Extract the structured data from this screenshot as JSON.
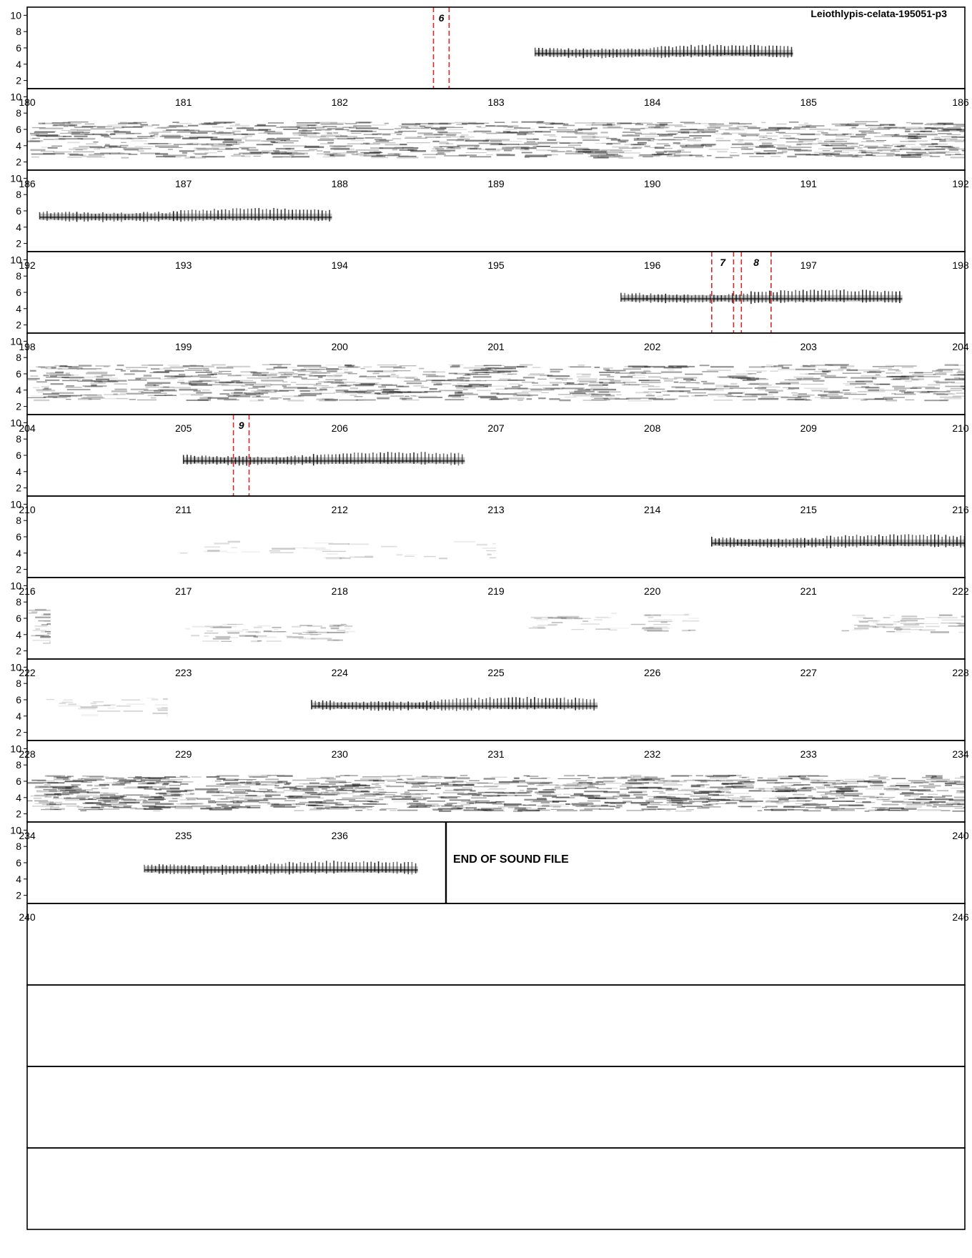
{
  "title": "Leiothlypis-celata-195051-p3",
  "end_label": "END OF SOUND FILE",
  "y_ticks": [
    "10",
    "8",
    "6",
    "4",
    "2"
  ],
  "colors": {
    "frame": "#000000",
    "marker": "#d62828",
    "ink": "#333333"
  },
  "chart_data": {
    "type": "heatmap",
    "title": "Leiothlypis-celata-195051-p3",
    "description_kind": "multi-row spectrogram",
    "ylim": [
      1,
      11
    ],
    "y_ticks": [
      10,
      8,
      6,
      4,
      2
    ],
    "row_seconds": 6,
    "rows": [
      {
        "start": 174,
        "show_x_labels": false,
        "x_tick_labels": [],
        "songs": [
          {
            "t0": 177.25,
            "t1": 178.9,
            "f": 5.5
          }
        ],
        "noise": [],
        "markers": [
          {
            "label": "6",
            "t0": 176.6,
            "t1": 176.7
          }
        ]
      },
      {
        "start": 180,
        "show_x_labels": true,
        "x_tick_labels": [
          "180",
          "181",
          "182",
          "183",
          "184",
          "185",
          "186"
        ],
        "songs": [],
        "noise": [
          {
            "t0": 180.0,
            "t1": 186.0,
            "f": 4.8,
            "density": 0.9
          }
        ],
        "markers": []
      },
      {
        "start": 186,
        "show_x_labels": true,
        "x_tick_labels": [
          "186",
          "187",
          "188",
          "189",
          "190",
          "191",
          "192"
        ],
        "songs": [
          {
            "t0": 186.08,
            "t1": 187.95,
            "f": 5.4
          }
        ],
        "noise": [],
        "markers": []
      },
      {
        "start": 192,
        "show_x_labels": true,
        "x_tick_labels": [
          "192",
          "193",
          "194",
          "195",
          "196",
          "197",
          "198"
        ],
        "songs": [
          {
            "t0": 195.8,
            "t1": 197.6,
            "f": 5.4
          }
        ],
        "noise": [],
        "markers": [
          {
            "label": "7",
            "t0": 196.38,
            "t1": 196.52
          },
          {
            "label": "8",
            "t0": 196.57,
            "t1": 196.76
          }
        ]
      },
      {
        "start": 198,
        "show_x_labels": true,
        "x_tick_labels": [
          "198",
          "199",
          "200",
          "201",
          "202",
          "203",
          "204"
        ],
        "songs": [],
        "noise": [
          {
            "t0": 198.0,
            "t1": 204.0,
            "f": 5.0,
            "density": 0.8
          }
        ],
        "markers": []
      },
      {
        "start": 204,
        "show_x_labels": true,
        "x_tick_labels": [
          "204",
          "205",
          "206",
          "207",
          "208",
          "209",
          "210"
        ],
        "songs": [
          {
            "t0": 205.0,
            "t1": 206.8,
            "f": 5.5
          }
        ],
        "noise": [],
        "markers": [
          {
            "label": "9",
            "t0": 205.32,
            "t1": 205.42
          }
        ]
      },
      {
        "start": 210,
        "show_x_labels": true,
        "x_tick_labels": [
          "210",
          "211",
          "212",
          "213",
          "214",
          "215",
          "216"
        ],
        "songs": [
          {
            "t0": 214.38,
            "t1": 216.0,
            "f": 5.4
          }
        ],
        "noise": [
          {
            "t0": 210.8,
            "t1": 213.0,
            "f": 4.5,
            "density": 0.08
          }
        ],
        "markers": []
      },
      {
        "start": 216,
        "show_x_labels": true,
        "x_tick_labels": [
          "216",
          "217",
          "218",
          "219",
          "220",
          "221",
          "222"
        ],
        "songs": [],
        "noise": [
          {
            "t0": 216.0,
            "t1": 216.15,
            "f": 5.0,
            "density": 0.7
          },
          {
            "t0": 217.0,
            "t1": 218.1,
            "f": 4.3,
            "density": 0.3
          },
          {
            "t0": 219.2,
            "t1": 220.3,
            "f": 5.6,
            "density": 0.2
          },
          {
            "t0": 221.2,
            "t1": 222.0,
            "f": 5.4,
            "density": 0.3
          }
        ],
        "markers": []
      },
      {
        "start": 222,
        "show_x_labels": true,
        "x_tick_labels": [
          "222",
          "223",
          "224",
          "225",
          "226",
          "227",
          "228"
        ],
        "songs": [
          {
            "t0": 223.82,
            "t1": 225.65,
            "f": 5.4
          }
        ],
        "noise": [
          {
            "t0": 222.1,
            "t1": 222.9,
            "f": 5.2,
            "density": 0.15
          }
        ],
        "markers": []
      },
      {
        "start": 228,
        "show_x_labels": true,
        "x_tick_labels": [
          "228",
          "229",
          "230",
          "231",
          "232",
          "233",
          "234"
        ],
        "songs": [],
        "noise": [
          {
            "t0": 228.0,
            "t1": 234.0,
            "f": 4.6,
            "density": 1.0
          }
        ],
        "markers": []
      },
      {
        "start": 234,
        "show_x_labels": true,
        "end_at": 236.68,
        "x_tick_labels": [
          "234",
          "235",
          "236",
          "",
          "",
          "",
          "240"
        ],
        "songs": [
          {
            "t0": 234.75,
            "t1": 236.5,
            "f": 5.3
          }
        ],
        "noise": [],
        "markers": []
      },
      {
        "start": 240,
        "show_x_labels": true,
        "blank": true,
        "x_tick_labels": [
          "240",
          "",
          "",
          "",
          "",
          "",
          "246"
        ],
        "songs": [],
        "noise": [],
        "markers": []
      },
      {
        "start": 246,
        "show_x_labels": false,
        "blank": true,
        "x_tick_labels": [],
        "songs": [],
        "noise": [],
        "markers": []
      },
      {
        "start": 252,
        "show_x_labels": false,
        "blank": true,
        "x_tick_labels": [],
        "songs": [],
        "noise": [],
        "markers": []
      },
      {
        "start": 258,
        "show_x_labels": false,
        "blank": true,
        "x_tick_labels": [],
        "songs": [],
        "noise": [],
        "markers": []
      }
    ]
  }
}
